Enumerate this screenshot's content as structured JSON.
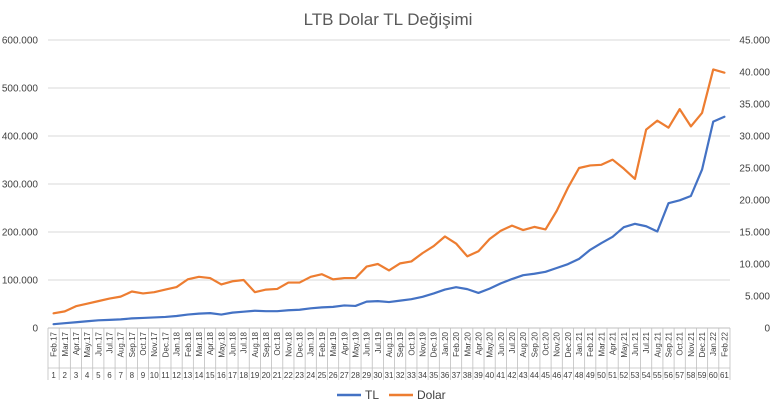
{
  "chart_data": {
    "type": "line",
    "title": "LTB Dolar TL Değişimi",
    "x_labels": [
      "Feb.17",
      "Mar.17",
      "Apr.17",
      "May.17",
      "Jun.17",
      "Jul.17",
      "Aug.17",
      "Sep.17",
      "Oct.17",
      "Nov.17",
      "Dec.17",
      "Jan.18",
      "Feb.18",
      "Mar.18",
      "Apr.18",
      "May.18",
      "Jun.18",
      "Jul.18",
      "Aug.18",
      "Sep.18",
      "Oct.18",
      "Nov.18",
      "Dec.18",
      "Jan.19",
      "Feb.19",
      "Mar.19",
      "Apr.19",
      "May.19",
      "Jun.19",
      "Jul.19",
      "Aug.19",
      "Sep.19",
      "Oct.19",
      "Nov.19",
      "Dec.19",
      "Jan.20",
      "Feb.20",
      "Mar.20",
      "Apr.20",
      "May.20",
      "Jun.20",
      "Jul.20",
      "Aug.20",
      "Sep.20",
      "Oct.20",
      "Nov.20",
      "Dec.20",
      "Jan.21",
      "Feb.21",
      "Mar.21",
      "Apr.21",
      "May.21",
      "Jun.21",
      "Jul.21",
      "Aug.21",
      "Sep.21",
      "Oct.21",
      "Nov.21",
      "Dec.21",
      "Jan.22",
      "Feb.22"
    ],
    "x_index": [
      "1",
      "2",
      "3",
      "4",
      "5",
      "6",
      "7",
      "8",
      "9",
      "10",
      "11",
      "12",
      "13",
      "14",
      "15",
      "16",
      "17",
      "18",
      "19",
      "20",
      "21",
      "22",
      "23",
      "24",
      "25",
      "26",
      "27",
      "28",
      "29",
      "30",
      "31",
      "32",
      "33",
      "34",
      "35",
      "36",
      "37",
      "38",
      "39",
      "40",
      "41",
      "42",
      "43",
      "44",
      "45",
      "46",
      "47",
      "48",
      "49",
      "50",
      "51",
      "52",
      "53",
      "54",
      "55",
      "56",
      "57",
      "58",
      "59",
      "60",
      "61"
    ],
    "y_left_ticks": [
      "0",
      "100.000",
      "200.000",
      "300.000",
      "400.000",
      "500.000",
      "600.000"
    ],
    "y_right_ticks": [
      "0",
      "5.000",
      "10.000",
      "15.000",
      "20.000",
      "25.000",
      "30.000",
      "35.000",
      "40.000",
      "45.000"
    ],
    "y_left_range": [
      0,
      600000
    ],
    "y_right_range": [
      0,
      45000
    ],
    "grid": true,
    "legend_position": "bottom",
    "series": [
      {
        "name": "TL",
        "axis": "left",
        "color": "#4472C4",
        "values": [
          8000,
          10000,
          12000,
          14000,
          16000,
          17000,
          18000,
          20000,
          21000,
          22000,
          23000,
          25000,
          28000,
          30000,
          31000,
          28000,
          32000,
          34000,
          36000,
          35000,
          35000,
          37000,
          38000,
          41000,
          43000,
          44000,
          47000,
          46000,
          55000,
          56000,
          54000,
          57000,
          60000,
          65000,
          72000,
          80000,
          85000,
          81000,
          73000,
          82000,
          93000,
          102000,
          110000,
          113000,
          117000,
          125000,
          133000,
          144000,
          163000,
          177000,
          190000,
          210000,
          217000,
          212000,
          201000,
          260000,
          266000,
          275000,
          330000,
          430000,
          440000
        ]
      },
      {
        "name": "Dolar",
        "axis": "right",
        "color": "#ED7D31",
        "values": [
          2300,
          2600,
          3400,
          3800,
          4200,
          4600,
          4900,
          5700,
          5400,
          5600,
          6000,
          6400,
          7600,
          8000,
          7800,
          6800,
          7300,
          7500,
          5600,
          6000,
          6100,
          7100,
          7100,
          8000,
          8400,
          7600,
          7800,
          7800,
          9600,
          10000,
          9000,
          10100,
          10400,
          11700,
          12800,
          14300,
          13200,
          11200,
          12000,
          13900,
          15200,
          16000,
          15300,
          15800,
          15400,
          18300,
          21900,
          25000,
          25400,
          25500,
          26300,
          24900,
          23300,
          31000,
          32400,
          31300,
          34200,
          31500,
          33600,
          40400,
          39900
        ]
      }
    ]
  },
  "legend": {
    "tl_label": "TL",
    "dolar_label": "Dolar"
  },
  "colors": {
    "tl": "#4472C4",
    "dolar": "#ED7D31",
    "grid": "#d9d9d9",
    "axis": "#bfbfbf",
    "text": "#404040"
  }
}
